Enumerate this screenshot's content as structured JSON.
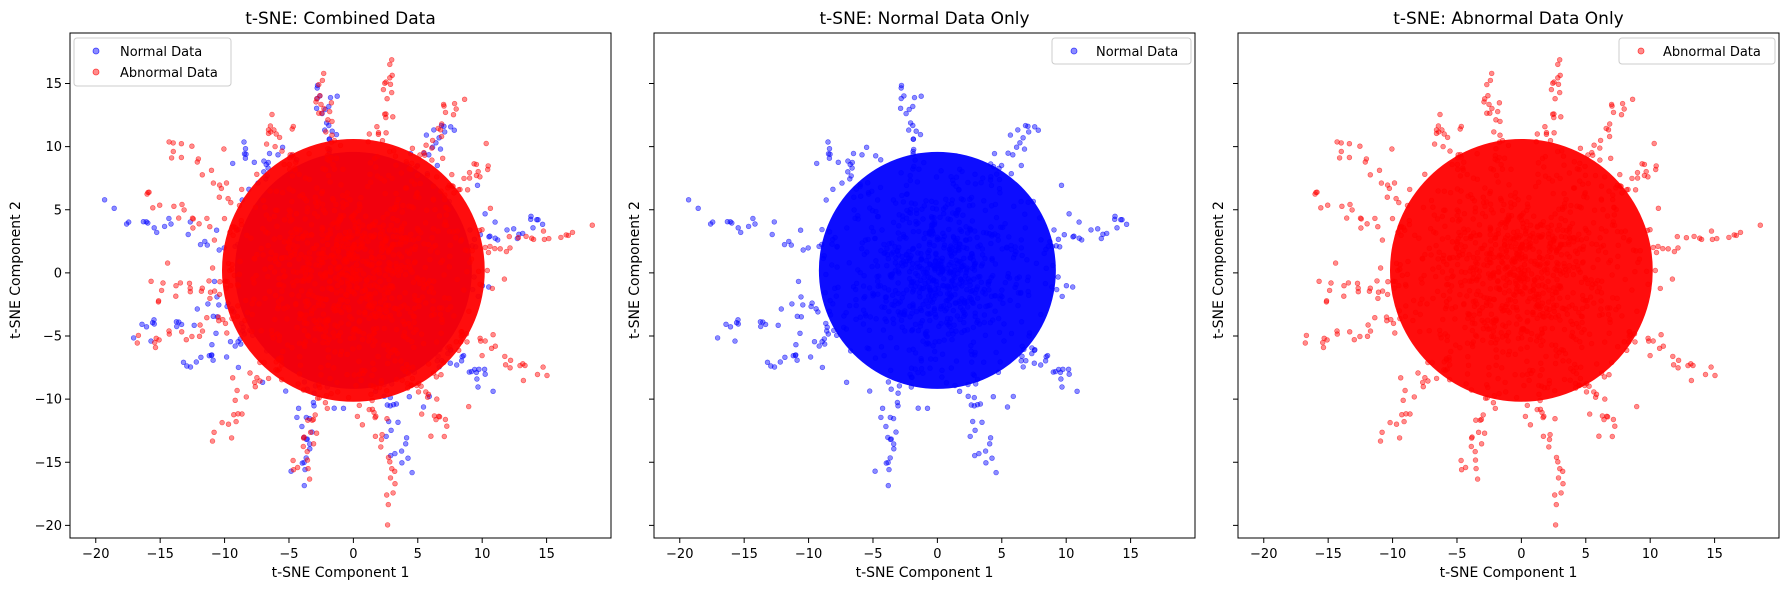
{
  "chart_data": [
    {
      "type": "scatter",
      "title": "t-SNE: Combined Data",
      "xlabel": "t-SNE Component 1",
      "ylabel": "t-SNE Component 2",
      "xlim": [
        -22,
        20
      ],
      "ylim": [
        -21,
        19
      ],
      "xticks": [
        -20,
        -15,
        -10,
        -5,
        0,
        5,
        10,
        15
      ],
      "yticks": [
        15,
        10,
        5,
        0,
        -5,
        -10,
        -15,
        -20
      ],
      "show_ytick_labels": true,
      "legend_position": "top-left",
      "series": [
        {
          "name": "Normal Data",
          "color": "#0000ff",
          "kind": "normal"
        },
        {
          "name": "Abnormal Data",
          "color": "#ff0000",
          "kind": "abnormal"
        }
      ]
    },
    {
      "type": "scatter",
      "title": "t-SNE: Normal Data Only",
      "xlabel": "t-SNE Component 1",
      "ylabel": "t-SNE Component 2",
      "xlim": [
        -22,
        20
      ],
      "ylim": [
        -21,
        19
      ],
      "xticks": [
        -20,
        -15,
        -10,
        -5,
        0,
        5,
        10,
        15
      ],
      "yticks": [
        15,
        10,
        5,
        0,
        -5,
        -10,
        -15,
        -20
      ],
      "show_ytick_labels": false,
      "legend_position": "top-right",
      "series": [
        {
          "name": "Normal Data",
          "color": "#0000ff",
          "kind": "normal"
        }
      ]
    },
    {
      "type": "scatter",
      "title": "t-SNE: Abnormal Data Only",
      "xlabel": "t-SNE Component 1",
      "ylabel": "t-SNE Component 2",
      "xlim": [
        -22,
        20
      ],
      "ylim": [
        -21,
        19
      ],
      "xticks": [
        -20,
        -15,
        -10,
        -5,
        0,
        5,
        10,
        15
      ],
      "yticks": [
        15,
        10,
        5,
        0,
        -5,
        -10,
        -15,
        -20
      ],
      "show_ytick_labels": false,
      "legend_position": "top-right",
      "series": [
        {
          "name": "Abnormal Data",
          "color": "#ff0000",
          "kind": "abnormal"
        }
      ]
    }
  ]
}
